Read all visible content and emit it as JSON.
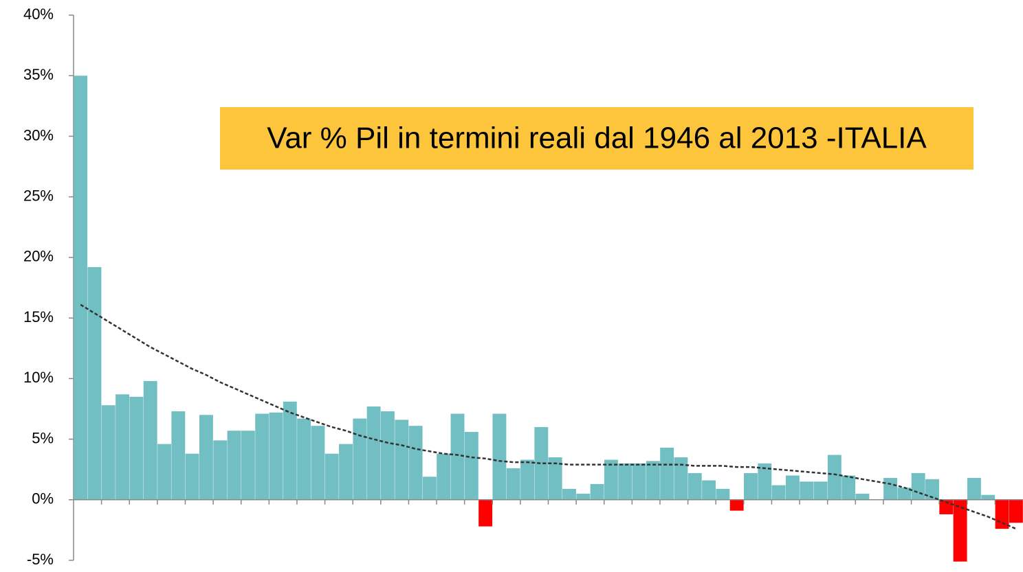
{
  "chart_data": {
    "type": "bar",
    "title": "Var % Pil in termini reali dal 1946 al 2013 -ITALIA",
    "categories": [
      null,
      null,
      null,
      null,
      null,
      null,
      null,
      null,
      null,
      null,
      null,
      null,
      null,
      null,
      null,
      null,
      null,
      null,
      null,
      null,
      null,
      null,
      null,
      null,
      null,
      null,
      null,
      null,
      null,
      null,
      null,
      null,
      null,
      null,
      null,
      null,
      null,
      null,
      null,
      null,
      null,
      null,
      null,
      null,
      null,
      null,
      null,
      null,
      null,
      null,
      null,
      null,
      null,
      null,
      null,
      null,
      null,
      null,
      null,
      null,
      null,
      null,
      null,
      null,
      null,
      null,
      null,
      null
    ],
    "values": [
      35,
      19.2,
      7.8,
      8.7,
      8.5,
      9.8,
      4.6,
      7.3,
      3.8,
      7.0,
      4.9,
      5.7,
      5.7,
      7.1,
      7.2,
      8.1,
      6.7,
      6.1,
      3.8,
      4.6,
      6.7,
      7.7,
      7.3,
      6.6,
      6.1,
      1.9,
      3.8,
      7.1,
      5.6,
      -2.2,
      7.1,
      2.6,
      3.3,
      6.0,
      3.5,
      0.9,
      0.5,
      1.3,
      3.3,
      3.0,
      3.0,
      3.2,
      4.3,
      3.5,
      2.2,
      1.6,
      0.9,
      -0.9,
      2.2,
      3.0,
      1.2,
      2.0,
      1.5,
      1.5,
      3.7,
      2.0,
      0.5,
      0.0,
      1.8,
      1.0,
      2.2,
      1.7,
      -1.2,
      -5.1,
      1.8,
      0.4,
      -2.4,
      -1.9
    ],
    "color": "#72bfc3",
    "negative_color": "#ff0000",
    "trend": {
      "color": "#333333",
      "values": [
        16.1,
        15.4,
        14.7,
        14.0,
        13.3,
        12.6,
        12.0,
        11.4,
        10.8,
        10.3,
        9.7,
        9.2,
        8.7,
        8.2,
        7.7,
        7.2,
        6.8,
        6.4,
        6.0,
        5.7,
        5.3,
        5.0,
        4.7,
        4.5,
        4.2,
        4.0,
        3.8,
        3.7,
        3.5,
        3.4,
        3.2,
        3.1,
        3.1,
        3.0,
        3.0,
        2.9,
        2.9,
        2.9,
        2.9,
        2.9,
        2.9,
        2.9,
        2.9,
        2.9,
        2.8,
        2.8,
        2.8,
        2.7,
        2.7,
        2.6,
        2.5,
        2.4,
        2.3,
        2.2,
        2.1,
        1.9,
        1.7,
        1.5,
        1.3,
        1.0,
        0.6,
        0.2,
        -0.2,
        -0.6,
        -1.0,
        -1.4,
        -1.9,
        -2.4
      ]
    },
    "ylim": [
      -5,
      40
    ],
    "yticks": [
      {
        "value": -5,
        "label": "-5%"
      },
      {
        "value": 0,
        "label": "0%"
      },
      {
        "value": 5,
        "label": "5%"
      },
      {
        "value": 10,
        "label": "10%"
      },
      {
        "value": 15,
        "label": "15%"
      },
      {
        "value": 20,
        "label": "20%"
      },
      {
        "value": 25,
        "label": "25%"
      },
      {
        "value": 30,
        "label": "30%"
      },
      {
        "value": 35,
        "label": "35%"
      },
      {
        "value": 40,
        "label": "40%"
      }
    ],
    "grid": false
  }
}
